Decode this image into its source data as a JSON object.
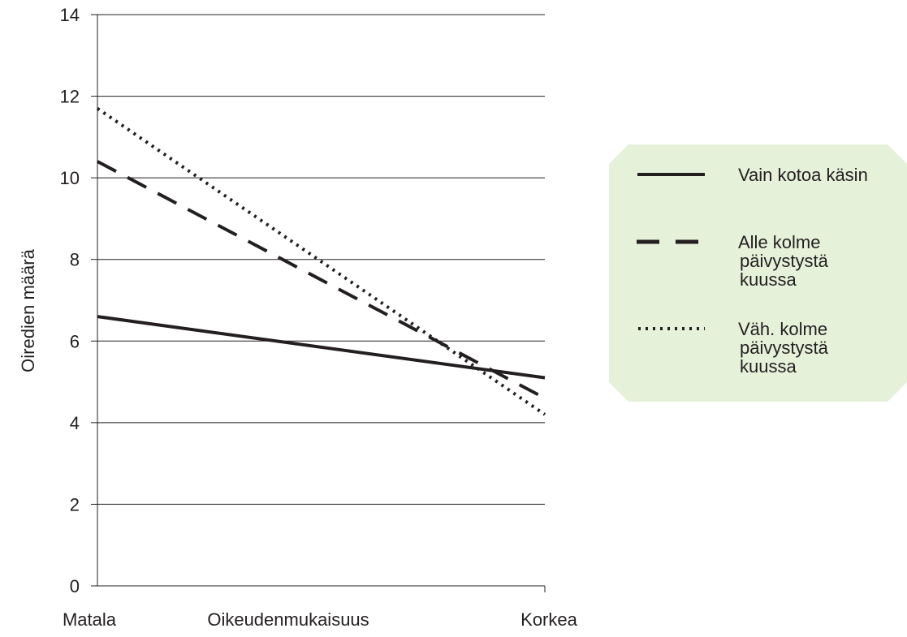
{
  "chart_data": {
    "type": "line",
    "x": [
      0,
      1
    ],
    "x_tick_labels": [
      "Matala",
      "Korkea"
    ],
    "xlabel": "Oikeudenmukaisuus",
    "ylabel": "Oiredien määrä",
    "ylim": [
      0,
      14
    ],
    "yticks": [
      0,
      2,
      4,
      6,
      8,
      10,
      12,
      14
    ],
    "y_tick_labels": [
      "0",
      "2",
      "4",
      "6",
      "8",
      "10",
      "12",
      "14"
    ],
    "grid": "horizontal",
    "legend_position": "right",
    "legend_background": "#e6f1da",
    "series": [
      {
        "name": "Vain kotoa käsin",
        "style": "solid",
        "values": [
          6.6,
          5.1
        ]
      },
      {
        "name": "Alle kolme päivystystä kuussa",
        "name_lines": [
          "Alle kolme",
          "päivystystä",
          "kuussa"
        ],
        "style": "dashed",
        "values": [
          10.4,
          4.6
        ]
      },
      {
        "name": "Väh. kolme päivystystä kuussa",
        "name_lines": [
          "Väh. kolme",
          "päivystystä",
          "kuussa"
        ],
        "style": "dotted",
        "values": [
          11.7,
          4.2
        ]
      }
    ],
    "line_color": "#231f20",
    "grid_color": "#231f20"
  }
}
